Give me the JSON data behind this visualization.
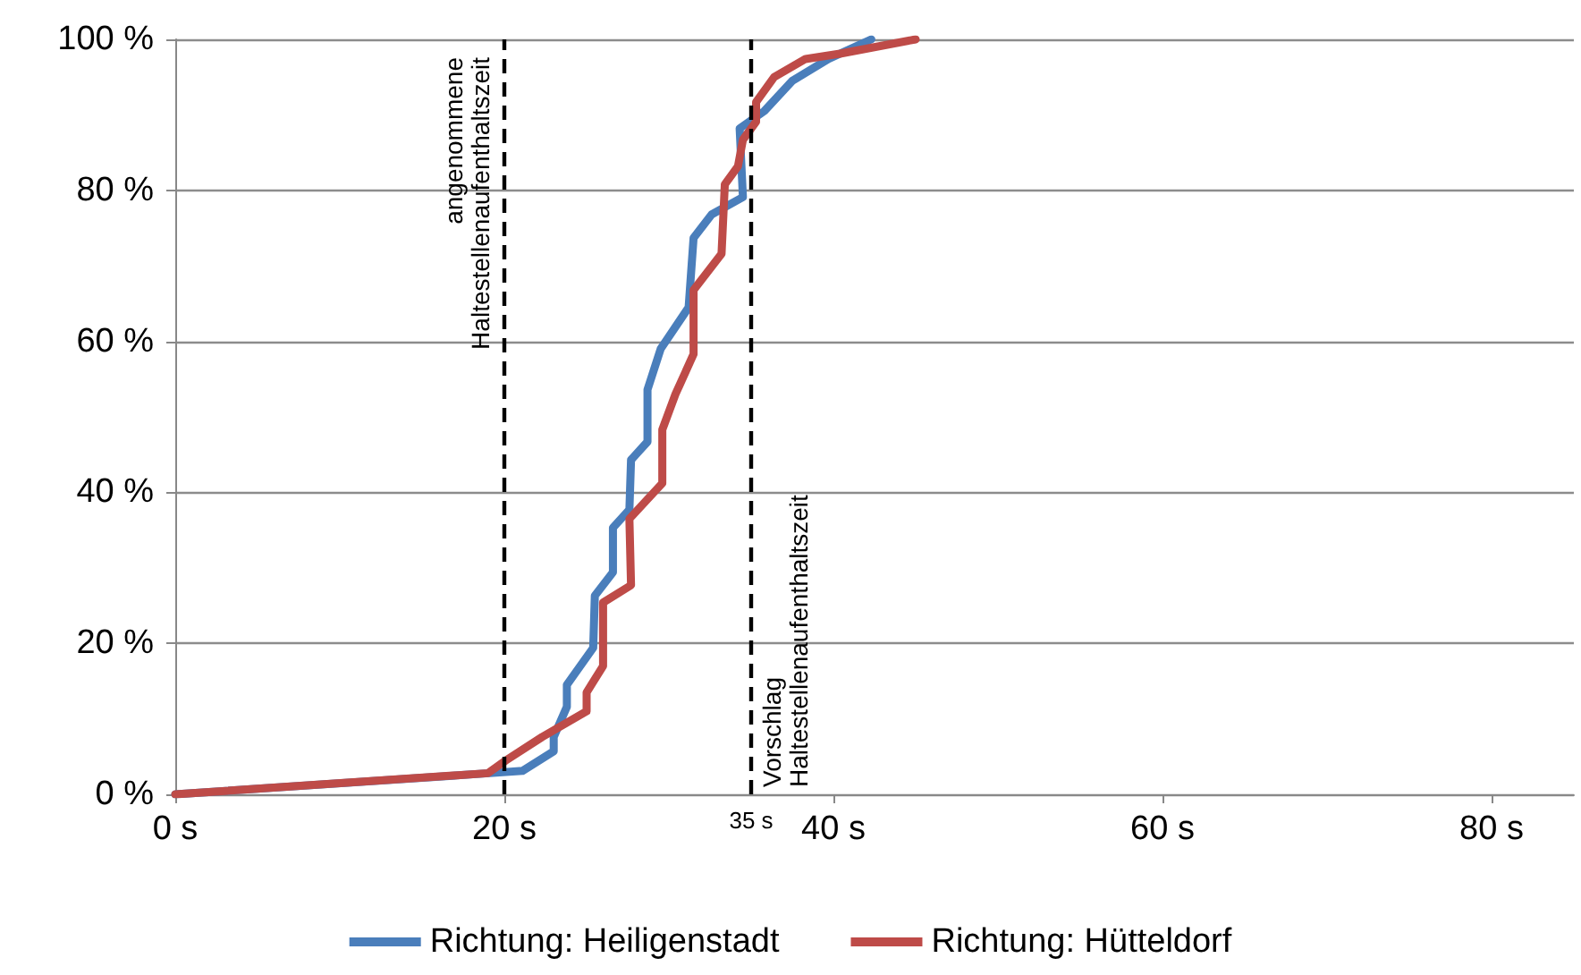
{
  "chart_data": {
    "type": "line",
    "series": [
      {
        "name": "Richtung: Heiligenstadt",
        "color": "#4a7ebb",
        "x": [
          0,
          19.1,
          21.1,
          23.0,
          23.0,
          23.8,
          23.8,
          25.4,
          25.5,
          26.6,
          26.6,
          27.6,
          27.7,
          28.7,
          28.7,
          29.5,
          31.2,
          31.5,
          32.6,
          34.5,
          34.3,
          35.8,
          37.5,
          39.7,
          42.3
        ],
        "values": [
          0,
          2.8,
          3.1,
          5.7,
          7.6,
          11.6,
          14.5,
          19.4,
          26.3,
          29.4,
          35.3,
          37.7,
          44.3,
          46.7,
          53.6,
          59,
          64.5,
          73.7,
          76.8,
          79.1,
          88.2,
          90.5,
          94.5,
          97.4,
          100
        ]
      },
      {
        "name": "Richtung: Hütteldorf",
        "color": "#be4b48",
        "x": [
          0,
          19.0,
          20.1,
          22.3,
          25.0,
          25.0,
          26.0,
          26.0,
          27.7,
          27.6,
          29.6,
          29.6,
          30.4,
          31.5,
          31.5,
          33.2,
          33.4,
          34.2,
          34.5,
          35.3,
          35.3,
          36.4,
          38.3,
          40.4,
          45.0
        ],
        "values": [
          0,
          2.8,
          4.5,
          7.6,
          11,
          13.5,
          17,
          25.4,
          27.7,
          36.5,
          41.2,
          48.3,
          53,
          58.3,
          66.8,
          71.6,
          80.8,
          83.2,
          86.7,
          89.1,
          91.7,
          95,
          97.4,
          98.1,
          100
        ]
      }
    ],
    "xlim": [
      0,
      85
    ],
    "xticks": [
      {
        "value": 0,
        "label": "0 s"
      },
      {
        "value": 20,
        "label": "20 s"
      },
      {
        "value": 40,
        "label": "40 s"
      },
      {
        "value": 60,
        "label": "60 s"
      },
      {
        "value": 80,
        "label": "80 s"
      }
    ],
    "ylim": [
      0,
      100
    ],
    "yticks": [
      {
        "value": 0,
        "label": "0 %"
      },
      {
        "value": 20,
        "label": "20 %"
      },
      {
        "value": 40,
        "label": "40 %"
      },
      {
        "value": 60,
        "label": "60 %"
      },
      {
        "value": 80,
        "label": "80 %"
      },
      {
        "value": 100,
        "label": "100 %"
      }
    ],
    "grid": "y",
    "legend": "bottom",
    "marker": "none",
    "line_style": "solid",
    "ref_lines": [
      {
        "axis": "x",
        "value": 20,
        "label": "angenommene\nHaltestellenaufenthaltszeit",
        "color": "#000000",
        "line_style": "dashed"
      },
      {
        "axis": "x",
        "value": 35,
        "label": "Vorschlag\nHaltestellenaufenthaltszeit",
        "color": "#000000",
        "line_style": "dashed"
      }
    ],
    "annotations": [
      {
        "text": "35 s",
        "x": 35,
        "y": 0
      }
    ]
  }
}
